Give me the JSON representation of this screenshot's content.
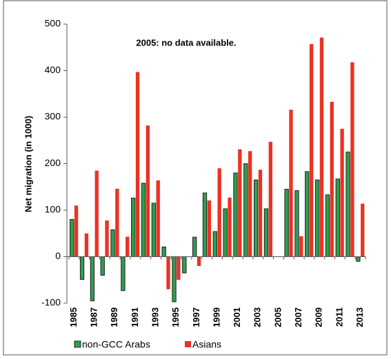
{
  "chart_data": {
    "type": "bar",
    "annotation": "2005: no data  available.",
    "y_label": "Net migration (in 1000)",
    "categories": [
      "1985",
      null,
      "1987",
      null,
      "1989",
      null,
      "1991",
      null,
      "1993",
      null,
      "1995",
      null,
      "1997",
      null,
      "1999",
      null,
      "2001",
      null,
      "2003",
      null,
      "2005",
      null,
      "2007",
      null,
      "2009",
      null,
      "2011",
      null,
      "2013"
    ],
    "series": [
      {
        "name": "non-GCC Arabs",
        "color": "#2f9e4f",
        "values": [
          80,
          -49,
          -95,
          -40,
          58,
          -73,
          126,
          158,
          115,
          21,
          -97,
          -35,
          42,
          137,
          54,
          103,
          180,
          200,
          165,
          103,
          null,
          145,
          142,
          183,
          165,
          133,
          167,
          225,
          -10
        ]
      },
      {
        "name": "Asians",
        "color": "#ec3223",
        "values": [
          110,
          50,
          185,
          78,
          146,
          43,
          397,
          282,
          164,
          -70,
          -50,
          0,
          -20,
          121,
          190,
          127,
          231,
          227,
          187,
          247,
          null,
          316,
          44,
          457,
          471,
          333,
          275,
          418,
          114
        ]
      }
    ],
    "ylim": [
      -100,
      500
    ],
    "yticks": [
      -100,
      0,
      100,
      200,
      300,
      400,
      500
    ],
    "grid": false
  }
}
